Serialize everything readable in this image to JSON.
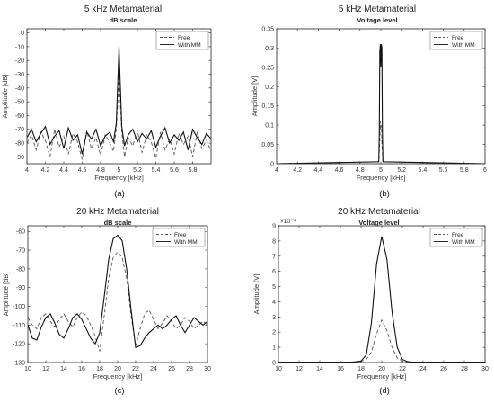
{
  "figure": {
    "panels": [
      {
        "id": "a",
        "title": "5 kHz Metamaterial",
        "subtitle": "dB scale",
        "caption": "(a)"
      },
      {
        "id": "b",
        "title": "5 kHz Metamaterial",
        "subtitle": "Voltage level",
        "caption": "(b)"
      },
      {
        "id": "c",
        "title": "20 kHz Metamaterial",
        "subtitle": "dB scale",
        "caption": "(c)"
      },
      {
        "id": "d",
        "title": "20 kHz Metamaterial",
        "subtitle": "Voltage level",
        "caption": "(d)"
      }
    ]
  },
  "chart_data": [
    {
      "type": "line",
      "title": "5 kHz Metamaterial",
      "subtitle": "dB scale",
      "xlabel": "Frequency [kHz]",
      "ylabel": "Amplitude [dB]",
      "xlim": [
        4,
        6
      ],
      "ylim": [
        -95,
        3
      ],
      "xticks": [
        "4",
        "4.2",
        "4.4",
        "4.6",
        "4.8",
        "5",
        "5.2",
        "5.4",
        "5.6",
        "5.8"
      ],
      "xtick_values": [
        4,
        4.2,
        4.4,
        4.6,
        4.8,
        5,
        5.2,
        5.4,
        5.6,
        5.8
      ],
      "yticks": [
        "0",
        "-10",
        "-20",
        "-30",
        "-40",
        "-50",
        "-60",
        "-70",
        "-80",
        "-90"
      ],
      "ytick_values": [
        0,
        -10,
        -20,
        -30,
        -40,
        -50,
        -60,
        -70,
        -80,
        -90
      ],
      "legend": "top-right",
      "grid": false,
      "series": [
        {
          "name": "Free",
          "style": "dashed",
          "x": [
            4,
            4.05,
            4.1,
            4.15,
            4.2,
            4.25,
            4.3,
            4.35,
            4.4,
            4.45,
            4.5,
            4.55,
            4.6,
            4.65,
            4.7,
            4.75,
            4.8,
            4.85,
            4.9,
            4.94,
            4.97,
            4.99,
            5,
            5.01,
            5.03,
            5.06,
            5.1,
            5.15,
            5.2,
            5.25,
            5.3,
            5.35,
            5.4,
            5.45,
            5.5,
            5.55,
            5.6,
            5.65,
            5.7,
            5.75,
            5.8,
            5.85,
            5.9,
            5.95,
            6
          ],
          "y": [
            -80,
            -74,
            -85,
            -72,
            -78,
            -90,
            -70,
            -83,
            -75,
            -88,
            -73,
            -79,
            -92,
            -71,
            -84,
            -76,
            -89,
            -74,
            -80,
            -86,
            -70,
            -45,
            -20,
            -45,
            -72,
            -90,
            -76,
            -82,
            -71,
            -87,
            -74,
            -79,
            -91,
            -72,
            -85,
            -77,
            -88,
            -73,
            -81,
            -75,
            -90,
            -72,
            -84,
            -78,
            -86
          ]
        },
        {
          "name": "With MM",
          "style": "solid",
          "x": [
            4,
            4.05,
            4.1,
            4.15,
            4.2,
            4.25,
            4.3,
            4.35,
            4.4,
            4.45,
            4.5,
            4.55,
            4.6,
            4.65,
            4.7,
            4.75,
            4.8,
            4.85,
            4.9,
            4.94,
            4.97,
            4.99,
            5,
            5.01,
            5.03,
            5.06,
            5.1,
            5.15,
            5.2,
            5.25,
            5.3,
            5.35,
            5.4,
            5.45,
            5.5,
            5.55,
            5.6,
            5.65,
            5.7,
            5.75,
            5.8,
            5.85,
            5.9,
            5.95,
            6
          ],
          "y": [
            -76,
            -70,
            -79,
            -73,
            -68,
            -81,
            -75,
            -71,
            -84,
            -69,
            -78,
            -74,
            -88,
            -72,
            -77,
            -70,
            -82,
            -75,
            -72,
            -79,
            -66,
            -30,
            -10,
            -30,
            -68,
            -82,
            -74,
            -70,
            -79,
            -73,
            -77,
            -71,
            -83,
            -75,
            -69,
            -80,
            -74,
            -78,
            -72,
            -85,
            -70,
            -76,
            -81,
            -73,
            -77
          ]
        }
      ]
    },
    {
      "type": "line",
      "title": "5 kHz Metamaterial",
      "subtitle": "Voltage level",
      "xlabel": "Frequency [kHz]",
      "ylabel": "Amplitude [V]",
      "xlim": [
        4,
        6
      ],
      "ylim": [
        0,
        0.35
      ],
      "xticks": [
        "4",
        "4.2",
        "4.4",
        "4.6",
        "4.8",
        "5",
        "5.2",
        "5.4",
        "5.6",
        "5.8",
        "6"
      ],
      "xtick_values": [
        4,
        4.2,
        4.4,
        4.6,
        4.8,
        5,
        5.2,
        5.4,
        5.6,
        5.8,
        6
      ],
      "yticks": [
        "0",
        "0.05",
        "0.1",
        "0.15",
        "0.2",
        "0.25",
        "0.3",
        "0.35"
      ],
      "ytick_values": [
        0,
        0.05,
        0.1,
        0.15,
        0.2,
        0.25,
        0.3,
        0.35
      ],
      "legend": "top-right",
      "grid": false,
      "series": [
        {
          "name": "Free",
          "style": "dashed",
          "x": [
            4,
            4.98,
            4.99,
            4.995,
            5,
            5.005,
            5.01,
            5.02,
            6
          ],
          "y": [
            0,
            0.005,
            0.06,
            0.11,
            0.09,
            0.1,
            0.05,
            0.005,
            0
          ]
        },
        {
          "name": "With MM",
          "style": "solid",
          "x": [
            4,
            4.98,
            4.985,
            4.99,
            4.995,
            5,
            5.005,
            5.01,
            5.015,
            5.02,
            6
          ],
          "y": [
            0,
            0.005,
            0.08,
            0.29,
            0.31,
            0.25,
            0.31,
            0.3,
            0.08,
            0.005,
            0
          ]
        }
      ]
    },
    {
      "type": "line",
      "title": "20 kHz Metamaterial",
      "subtitle": "dB scale",
      "xlabel": "Frequency [kHz]",
      "ylabel": "Amplitude [dB]",
      "xlim": [
        10,
        30
      ],
      "ylim": [
        -130,
        -57
      ],
      "xticks": [
        "10",
        "12",
        "14",
        "16",
        "18",
        "20",
        "22",
        "24",
        "26",
        "28",
        "30"
      ],
      "xtick_values": [
        10,
        12,
        14,
        16,
        18,
        20,
        22,
        24,
        26,
        28,
        30
      ],
      "yticks": [
        "-60",
        "-70",
        "-80",
        "-90",
        "-100",
        "-110",
        "-120",
        "-130"
      ],
      "ytick_values": [
        -60,
        -70,
        -80,
        -90,
        -100,
        -110,
        -120,
        -130
      ],
      "legend": "top-right",
      "grid": false,
      "series": [
        {
          "name": "Free",
          "style": "dashed",
          "x": [
            10,
            10.5,
            11,
            11.5,
            12,
            12.5,
            13,
            13.5,
            14,
            14.5,
            15,
            15.5,
            16,
            16.5,
            17,
            17.5,
            18,
            18.5,
            19,
            19.5,
            20,
            20.5,
            21,
            21.5,
            22,
            22.5,
            23,
            23.5,
            24,
            24.5,
            25,
            25.5,
            26,
            26.5,
            27,
            27.5,
            28,
            28.5,
            29,
            29.5,
            30
          ],
          "y": [
            -106,
            -110,
            -112,
            -106,
            -104,
            -108,
            -111,
            -107,
            -104,
            -108,
            -111,
            -106,
            -103,
            -105,
            -110,
            -116,
            -124,
            -105,
            -85,
            -74,
            -71,
            -74,
            -85,
            -105,
            -121,
            -112,
            -104,
            -102,
            -107,
            -112,
            -109,
            -105,
            -108,
            -112,
            -110,
            -106,
            -108,
            -112,
            -110,
            -108,
            -110
          ]
        },
        {
          "name": "With MM",
          "style": "solid",
          "x": [
            10,
            10.5,
            11,
            11.5,
            12,
            12.5,
            13,
            13.5,
            14,
            14.5,
            15,
            15.5,
            16,
            16.5,
            17,
            17.5,
            18,
            18.5,
            19,
            19.5,
            20,
            20.5,
            21,
            21.5,
            22,
            22.5,
            23,
            23.5,
            24,
            24.5,
            25,
            25.5,
            26,
            26.5,
            27,
            27.5,
            28,
            28.5,
            29,
            29.5,
            30
          ],
          "y": [
            -110,
            -117,
            -118,
            -111,
            -106,
            -104,
            -109,
            -115,
            -117,
            -112,
            -106,
            -104,
            -107,
            -112,
            -117,
            -120,
            -114,
            -95,
            -75,
            -64,
            -62,
            -65,
            -80,
            -102,
            -122,
            -121,
            -117,
            -114,
            -112,
            -110,
            -112,
            -110,
            -107,
            -105,
            -110,
            -114,
            -110,
            -106,
            -108,
            -110,
            -108
          ]
        }
      ]
    },
    {
      "type": "line",
      "title": "20 kHz Metamaterial",
      "subtitle": "Voltage level",
      "xlabel": "Frequency [kHz]",
      "ylabel": "Amplitude [V]",
      "xlim": [
        10,
        30
      ],
      "ylim": [
        0,
        0.0009
      ],
      "xticks": [
        "10",
        "12",
        "14",
        "16",
        "18",
        "20",
        "22",
        "24",
        "26",
        "28",
        "30"
      ],
      "xtick_values": [
        10,
        12,
        14,
        16,
        18,
        20,
        22,
        24,
        26,
        28,
        30
      ],
      "yticks": [
        "0",
        "1",
        "2",
        "3",
        "4",
        "5",
        "6",
        "7",
        "8",
        "9"
      ],
      "ytick_values": [
        0,
        0.0001,
        0.0002,
        0.0003,
        0.0004,
        0.0005,
        0.0006,
        0.0007,
        0.0008,
        0.0009
      ],
      "yexponent": "×10⁻⁴",
      "legend": "top-right",
      "grid": false,
      "series": [
        {
          "name": "Free",
          "style": "dashed",
          "x": [
            10,
            17,
            17.5,
            18,
            18.5,
            19,
            19.5,
            20,
            20.5,
            21,
            21.5,
            22,
            22.5,
            23,
            30
          ],
          "y": [
            3e-06,
            3e-06,
            4e-06,
            8e-06,
            2e-05,
            7e-05,
            0.00019,
            0.00028,
            0.00021,
            0.0001,
            3e-05,
            1e-05,
            5e-06,
            3e-06,
            3e-06
          ]
        },
        {
          "name": "With MM",
          "style": "solid",
          "x": [
            10,
            17,
            17.5,
            18,
            18.5,
            19,
            19.5,
            20,
            20.5,
            21,
            21.5,
            22,
            22.5,
            23,
            30
          ],
          "y": [
            3e-06,
            3e-06,
            5e-06,
            1e-05,
            5e-05,
            0.00026,
            0.00065,
            0.00083,
            0.00068,
            0.00033,
            0.0001,
            2e-05,
            6e-06,
            3e-06,
            3e-06
          ]
        }
      ]
    }
  ]
}
